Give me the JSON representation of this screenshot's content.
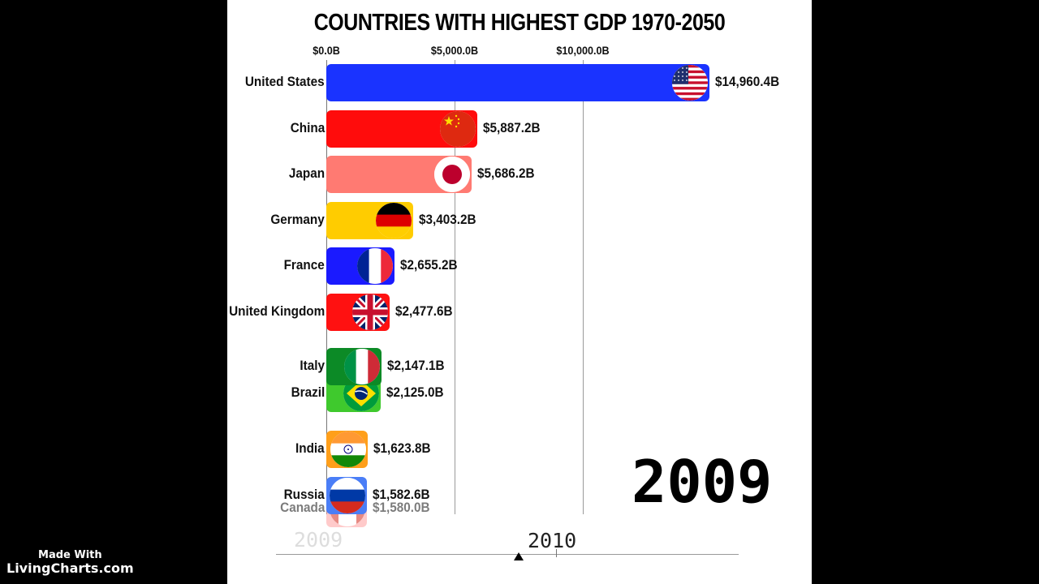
{
  "chart_data": {
    "type": "bar",
    "orientation": "horizontal",
    "title": "COUNTRIES WITH HIGHEST GDP 1970-2050",
    "unit": "B",
    "x_ticks": [
      {
        "value": 0,
        "label": "$0.0B"
      },
      {
        "value": 5000,
        "label": "$5,000.0B"
      },
      {
        "value": 10000,
        "label": "$10,000.0B"
      }
    ],
    "xlim": [
      0,
      15750
    ],
    "bars": [
      {
        "country": "United States",
        "value": 14960.4,
        "label": "$14,960.4B",
        "color": "#1a33ff",
        "flag": "us-flag-icon",
        "rank": 0
      },
      {
        "country": "China",
        "value": 5887.2,
        "label": "$5,887.2B",
        "color": "#ff0c0c",
        "flag": "china-flag-icon",
        "rank": 1
      },
      {
        "country": "Japan",
        "value": 5686.2,
        "label": "$5,686.2B",
        "color": "#ff7a72",
        "flag": "japan-flag-icon",
        "rank": 2
      },
      {
        "country": "Germany",
        "value": 3403.2,
        "label": "$3,403.2B",
        "color": "#ffcc00",
        "flag": "germany-flag-icon",
        "rank": 3
      },
      {
        "country": "France",
        "value": 2655.2,
        "label": "$2,655.2B",
        "color": "#1a1aff",
        "flag": "france-flag-icon",
        "rank": 4
      },
      {
        "country": "United Kingdom",
        "value": 2477.6,
        "label": "$2,477.6B",
        "color": "#ff1111",
        "flag": "uk-flag-icon",
        "rank": 5
      },
      {
        "country": "Italy",
        "value": 2147.1,
        "label": "$2,147.1B",
        "color": "#0c8a26",
        "flag": "italy-flag-icon",
        "rank": 6.2
      },
      {
        "country": "Brazil",
        "value": 2125.0,
        "label": "$2,125.0B",
        "color": "#3fc92d",
        "flag": "brazil-flag-icon",
        "rank": 6.78
      },
      {
        "country": "India",
        "value": 1623.8,
        "label": "$1,623.8B",
        "color": "#ff9f1a",
        "flag": "india-flag-icon",
        "rank": 8
      },
      {
        "country": "Russia",
        "value": 1582.6,
        "label": "$1,582.6B",
        "color": "#4a7ef7",
        "flag": "russia-flag-icon",
        "rank": 9
      },
      {
        "country": "Canada",
        "value": 1580.0,
        "label": "$1,580.0B",
        "color": "#ff9f9f",
        "flag": "canada-flag-icon",
        "rank": 9.3,
        "faded": true
      }
    ]
  },
  "year": "2009",
  "timeline": {
    "year": "2010",
    "ghost_year": "2009"
  },
  "watermark": {
    "line1": "Made With",
    "line2": "LivingCharts.com"
  }
}
